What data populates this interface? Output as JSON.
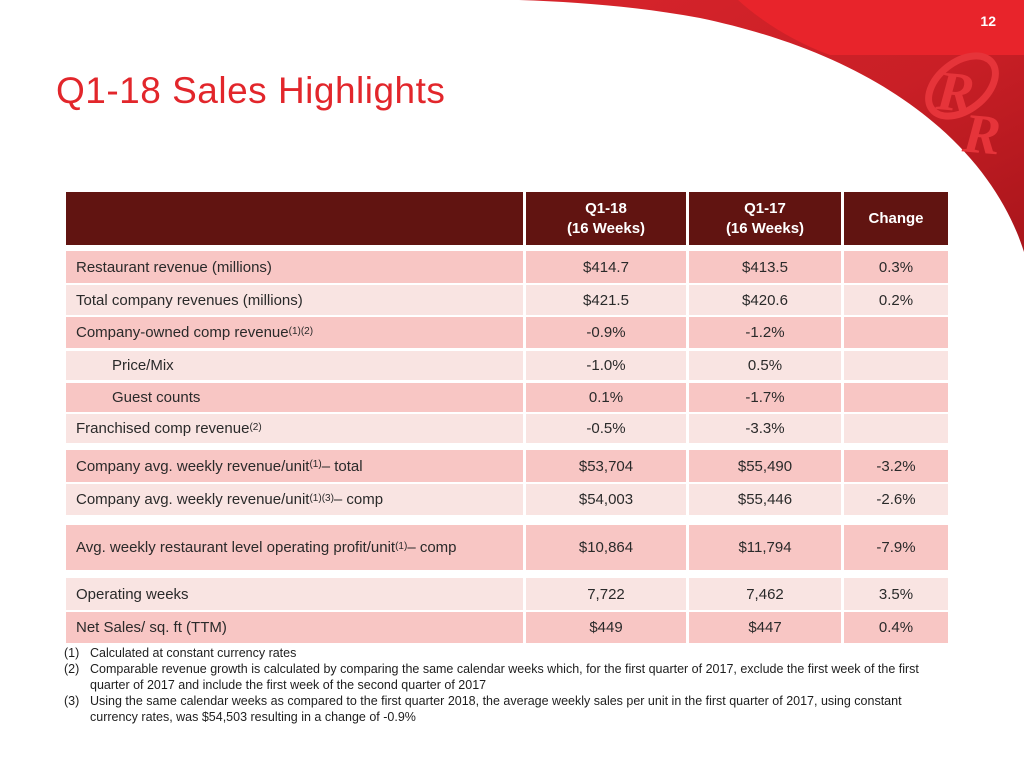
{
  "page_number": "12",
  "title": "Q1-18 Sales Highlights",
  "logo": {
    "name": "red-robin-rr-logo",
    "letters": [
      "R",
      "R"
    ]
  },
  "colors": {
    "band_red": "#E8242B",
    "swoosh_red_top": "#D7242B",
    "swoosh_red_bottom": "#A9151B",
    "logo_red": "#E6343A",
    "header_maroon": "#611411",
    "row_dark_pink": "#F8C6C4",
    "row_light_pink": "#F9E4E2",
    "title_red": "#E2262B"
  },
  "table": {
    "header": {
      "col_label": "",
      "col1_line1": "Q1-18",
      "col1_line2": "(16 Weeks)",
      "col2_line1": "Q1-17",
      "col2_line2": "(16 Weeks)",
      "col3": "Change"
    },
    "rows": [
      {
        "label": "Restaurant revenue (millions)",
        "sup": "",
        "suffix": "",
        "indent": false,
        "shade": "dark",
        "q1_18": "$414.7",
        "q1_17": "$413.5",
        "change": "0.3%"
      },
      {
        "label": "Total company revenues (millions)",
        "sup": "",
        "suffix": "",
        "indent": false,
        "shade": "light",
        "q1_18": "$421.5",
        "q1_17": "$420.6",
        "change": "0.2%"
      },
      {
        "label": "Company-owned comp revenue",
        "sup": "(1)(2)",
        "suffix": "",
        "indent": false,
        "shade": "dark",
        "q1_18": "-0.9%",
        "q1_17": "-1.2%",
        "change": ""
      },
      {
        "label": "Price/Mix",
        "sup": "",
        "suffix": "",
        "indent": true,
        "shade": "light",
        "q1_18": "-1.0%",
        "q1_17": "0.5%",
        "change": ""
      },
      {
        "label": "Guest counts",
        "sup": "",
        "suffix": "",
        "indent": true,
        "shade": "dark",
        "q1_18": "0.1%",
        "q1_17": "-1.7%",
        "change": ""
      },
      {
        "label": "Franchised comp revenue",
        "sup": "(2)",
        "suffix": "",
        "indent": false,
        "shade": "light",
        "q1_18": "-0.5%",
        "q1_17": "-3.3%",
        "change": ""
      },
      {
        "label": "Company avg. weekly revenue/unit",
        "sup": "(1)",
        "suffix": " – total",
        "indent": false,
        "shade": "dark",
        "q1_18": "$53,704",
        "q1_17": "$55,490",
        "change": "-3.2%"
      },
      {
        "label": "Company avg. weekly revenue/unit",
        "sup": "(1)(3)",
        "suffix": " – comp",
        "indent": false,
        "shade": "light",
        "q1_18": "$54,003",
        "q1_17": "$55,446",
        "change": "-2.6%"
      },
      {
        "label": "Avg. weekly restaurant level operating profit/unit",
        "sup": "(1)",
        "suffix": " – comp",
        "indent": false,
        "shade": "dark",
        "q1_18": "$10,864",
        "q1_17": "$11,794",
        "change": "-7.9%"
      },
      {
        "label": "Operating weeks",
        "sup": "",
        "suffix": "",
        "indent": false,
        "shade": "light",
        "q1_18": "7,722",
        "q1_17": "7,462",
        "change": "3.5%"
      },
      {
        "label": "Net Sales/ sq. ft (TTM)",
        "sup": "",
        "suffix": "",
        "indent": false,
        "shade": "dark",
        "q1_18": "$449",
        "q1_17": "$447",
        "change": "0.4%"
      }
    ]
  },
  "footnotes": [
    {
      "num": "(1)",
      "text": "Calculated at constant currency rates"
    },
    {
      "num": "(2)",
      "text": "Comparable revenue growth is calculated by comparing the same calendar weeks which, for the first quarter of 2017, exclude the first week of the first quarter of 2017 and include the first week of the second quarter of 2017"
    },
    {
      "num": "(3)",
      "text": "Using the same calendar weeks as compared to the first quarter 2018, the average weekly sales per unit in the first quarter of 2017, using constant currency rates, was $54,503 resulting in a change of -0.9%"
    }
  ]
}
